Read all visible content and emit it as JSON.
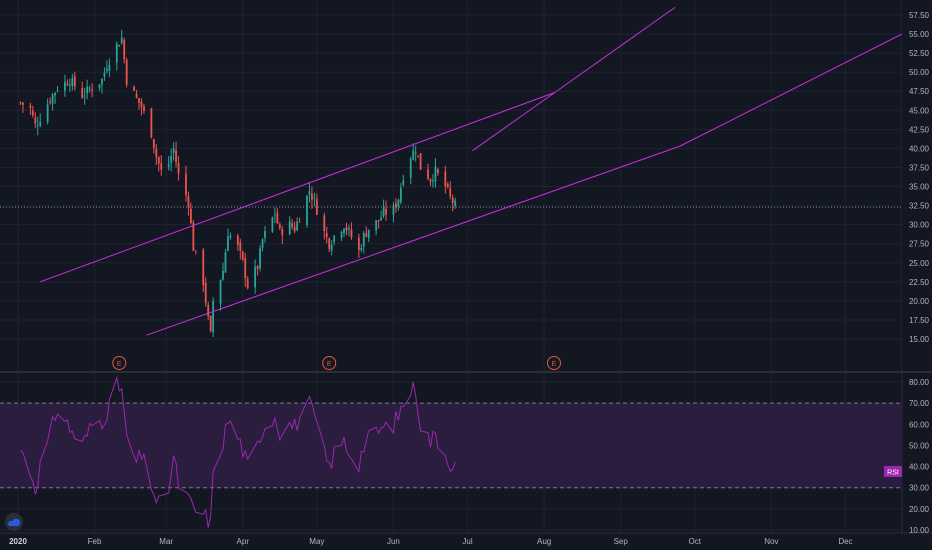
{
  "colors": {
    "background": "#131722",
    "grid": "#1f2330",
    "up": "#26a69a",
    "down": "#ef5350",
    "channel": "#c92fdc",
    "rsi_line": "#9c27b0",
    "rsi_band": "#2a1d3d",
    "hline": "#758696",
    "axis_text": "#b2b5be"
  },
  "icons": {
    "earnings": "earnings-marker-icon",
    "logo": "tradingview-logo-icon"
  },
  "earnings_label": "E",
  "chart_data": [
    {
      "type": "candlestick",
      "price_axis_ticks": [
        "57.50",
        "55.00",
        "52.50",
        "50.00",
        "47.50",
        "45.00",
        "42.50",
        "40.00",
        "37.50",
        "35.00",
        "32.50",
        "30.00",
        "27.50",
        "25.00",
        "22.50",
        "20.00",
        "17.50",
        "15.00"
      ],
      "ylim": [
        13.5,
        58.5
      ],
      "x_month_labels": [
        "2020",
        "Feb",
        "Mar",
        "Apr",
        "May",
        "Jun",
        "Jul",
        "Aug",
        "Sep",
        "Oct",
        "Nov",
        "Dec"
      ],
      "current_price_line": 32.3,
      "earnings_markers": [
        "2020-02-11",
        "2020-05-06",
        "2020-08-05"
      ],
      "close_anchors": [
        [
          "2020-01-02",
          46.0
        ],
        [
          "2020-01-06",
          45.2
        ],
        [
          "2020-01-08",
          43.0
        ],
        [
          "2020-01-10",
          44.0
        ],
        [
          "2020-01-14",
          46.5
        ],
        [
          "2020-01-17",
          48.0
        ],
        [
          "2020-01-22",
          49.0
        ],
        [
          "2020-01-27",
          47.0
        ],
        [
          "2020-01-31",
          48.0
        ],
        [
          "2020-02-04",
          49.0
        ],
        [
          "2020-02-06",
          51.0
        ],
        [
          "2020-02-10",
          53.5
        ],
        [
          "2020-02-12",
          54.5
        ],
        [
          "2020-02-14",
          49.0
        ],
        [
          "2020-02-18",
          46.5
        ],
        [
          "2020-02-20",
          45.5
        ],
        [
          "2020-02-24",
          42.0
        ],
        [
          "2020-02-26",
          39.0
        ],
        [
          "2020-02-28",
          37.0
        ],
        [
          "2020-03-02",
          38.0
        ],
        [
          "2020-03-04",
          40.0
        ],
        [
          "2020-03-06",
          36.5
        ],
        [
          "2020-03-10",
          33.0
        ],
        [
          "2020-03-12",
          27.0
        ],
        [
          "2020-03-16",
          22.5
        ],
        [
          "2020-03-18",
          17.5
        ],
        [
          "2020-03-19",
          15.5
        ],
        [
          "2020-03-20",
          20.0
        ],
        [
          "2020-03-24",
          24.0
        ],
        [
          "2020-03-26",
          29.0
        ],
        [
          "2020-03-30",
          27.0
        ],
        [
          "2020-04-01",
          25.0
        ],
        [
          "2020-04-03",
          22.0
        ],
        [
          "2020-04-07",
          24.5
        ],
        [
          "2020-04-09",
          28.0
        ],
        [
          "2020-04-14",
          31.5
        ],
        [
          "2020-04-16",
          29.0
        ],
        [
          "2020-04-20",
          30.0
        ],
        [
          "2020-04-22",
          29.5
        ],
        [
          "2020-04-24",
          31.0
        ],
        [
          "2020-04-28",
          34.5
        ],
        [
          "2020-04-30",
          33.0
        ],
        [
          "2020-05-04",
          29.0
        ],
        [
          "2020-05-06",
          27.5
        ],
        [
          "2020-05-08",
          28.5
        ],
        [
          "2020-05-12",
          30.0
        ],
        [
          "2020-05-14",
          29.0
        ],
        [
          "2020-05-18",
          26.5
        ],
        [
          "2020-05-20",
          28.5
        ],
        [
          "2020-05-22",
          29.5
        ],
        [
          "2020-05-26",
          30.5
        ],
        [
          "2020-05-28",
          31.5
        ],
        [
          "2020-06-01",
          32.0
        ],
        [
          "2020-06-03",
          33.5
        ],
        [
          "2020-06-05",
          36.5
        ],
        [
          "2020-06-08",
          39.0
        ],
        [
          "2020-06-10",
          40.0
        ],
        [
          "2020-06-12",
          37.5
        ],
        [
          "2020-06-16",
          36.0
        ],
        [
          "2020-06-18",
          37.0
        ],
        [
          "2020-06-22",
          35.0
        ],
        [
          "2020-06-24",
          33.5
        ],
        [
          "2020-06-26",
          32.5
        ]
      ]
    },
    {
      "type": "line",
      "name": "RSI",
      "axis_ticks": [
        "80.00",
        "70.00",
        "60.00",
        "50.00",
        "40.00",
        "30.00",
        "20.00",
        "10.00"
      ],
      "ylim": [
        5,
        85
      ],
      "bands": [
        30,
        70
      ],
      "rsi_anchors": [
        [
          "2020-01-02",
          48
        ],
        [
          "2020-01-06",
          38
        ],
        [
          "2020-01-08",
          30
        ],
        [
          "2020-01-10",
          40
        ],
        [
          "2020-01-14",
          55
        ],
        [
          "2020-01-17",
          68
        ],
        [
          "2020-01-22",
          58
        ],
        [
          "2020-01-27",
          50
        ],
        [
          "2020-01-31",
          60
        ],
        [
          "2020-02-04",
          62
        ],
        [
          "2020-02-06",
          66
        ],
        [
          "2020-02-10",
          78
        ],
        [
          "2020-02-12",
          77
        ],
        [
          "2020-02-14",
          52
        ],
        [
          "2020-02-18",
          42
        ],
        [
          "2020-02-20",
          45
        ],
        [
          "2020-02-24",
          32
        ],
        [
          "2020-02-26",
          24
        ],
        [
          "2020-02-28",
          22
        ],
        [
          "2020-03-02",
          30
        ],
        [
          "2020-03-04",
          44
        ],
        [
          "2020-03-06",
          32
        ],
        [
          "2020-03-10",
          24
        ],
        [
          "2020-03-12",
          20
        ],
        [
          "2020-03-16",
          17
        ],
        [
          "2020-03-18",
          15
        ],
        [
          "2020-03-19",
          14
        ],
        [
          "2020-03-20",
          35
        ],
        [
          "2020-03-24",
          52
        ],
        [
          "2020-03-26",
          62
        ],
        [
          "2020-03-30",
          54
        ],
        [
          "2020-04-01",
          48
        ],
        [
          "2020-04-03",
          40
        ],
        [
          "2020-04-07",
          50
        ],
        [
          "2020-04-09",
          58
        ],
        [
          "2020-04-14",
          64
        ],
        [
          "2020-04-16",
          57
        ],
        [
          "2020-04-20",
          60
        ],
        [
          "2020-04-22",
          59
        ],
        [
          "2020-04-24",
          63
        ],
        [
          "2020-04-28",
          69
        ],
        [
          "2020-04-30",
          64
        ],
        [
          "2020-05-04",
          46
        ],
        [
          "2020-05-06",
          40
        ],
        [
          "2020-05-08",
          46
        ],
        [
          "2020-05-12",
          52
        ],
        [
          "2020-05-14",
          47
        ],
        [
          "2020-05-18",
          42
        ],
        [
          "2020-05-20",
          50
        ],
        [
          "2020-05-22",
          53
        ],
        [
          "2020-05-26",
          57
        ],
        [
          "2020-05-28",
          58
        ],
        [
          "2020-06-01",
          60
        ],
        [
          "2020-06-03",
          64
        ],
        [
          "2020-06-05",
          70
        ],
        [
          "2020-06-08",
          76
        ],
        [
          "2020-06-10",
          77
        ],
        [
          "2020-06-12",
          60
        ],
        [
          "2020-06-16",
          52
        ],
        [
          "2020-06-18",
          55
        ],
        [
          "2020-06-22",
          46
        ],
        [
          "2020-06-24",
          42
        ],
        [
          "2020-06-26",
          40
        ]
      ],
      "last_value_label": "RSI"
    }
  ],
  "channel_lines": [
    {
      "name": "channel-upper-line",
      "points": [
        [
          "2020-01-10",
          22.5
        ],
        [
          "2020-08-05",
          47.3
        ]
      ]
    },
    {
      "name": "channel-lower-line",
      "points": [
        [
          "2020-02-22",
          15.5
        ],
        [
          "2020-09-25",
          40.3
        ]
      ]
    },
    {
      "name": "channel-upper-extension-line",
      "points": [
        [
          "2020-07-03",
          39.7
        ],
        [
          "2020-09-23",
          58.5
        ]
      ]
    },
    {
      "name": "channel-lower-extension-line",
      "points": [
        [
          "2020-09-25",
          40.3
        ],
        [
          "2020-12-31",
          55.0
        ]
      ]
    }
  ]
}
